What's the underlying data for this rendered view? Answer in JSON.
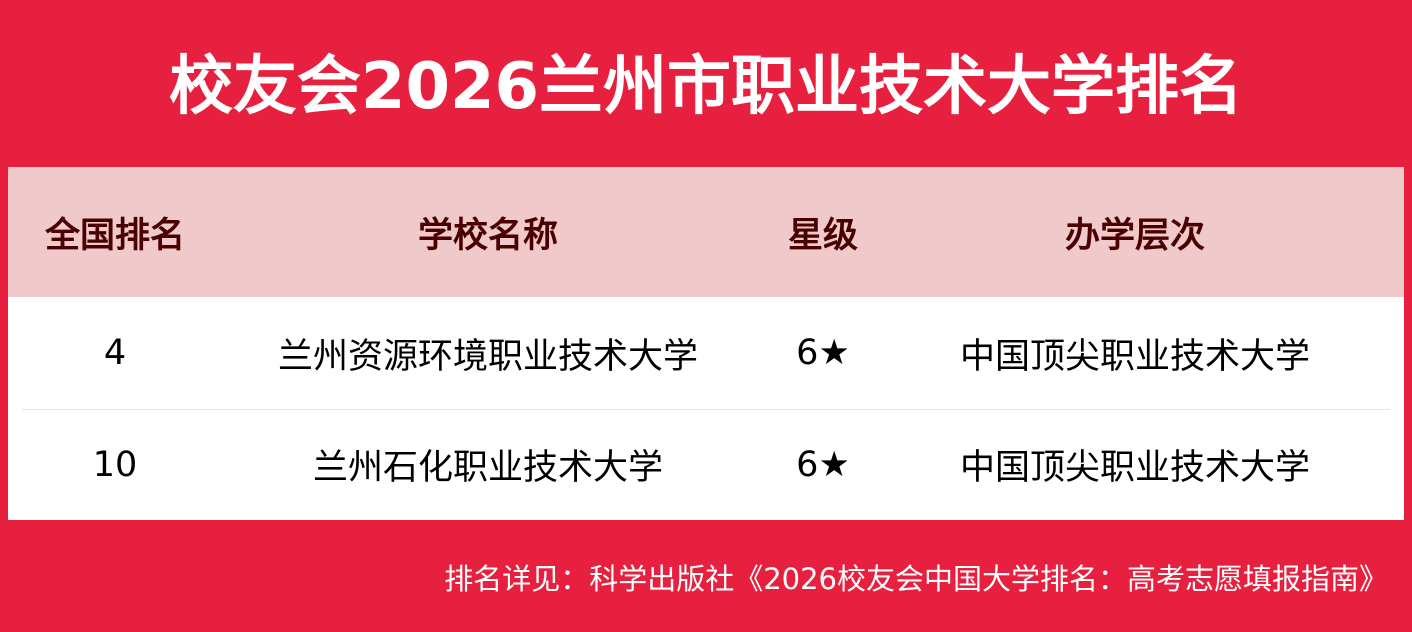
{
  "title": "校友会2026兰州市职业技术大学排名",
  "table": {
    "headers": [
      "全国排名",
      "学校名称",
      "星级",
      "办学层次"
    ],
    "rows": [
      [
        "4",
        "兰州资源环境职业技术大学",
        "6★",
        "中国顶尖职业技术大学"
      ],
      [
        "10",
        "兰州石化职业技术大学",
        "6★",
        "中国顶尖职业技术大学"
      ]
    ]
  },
  "footer": "排名详见：科学出版社《2026校友会中国大学排名：高考志愿填报指南》",
  "colors": {
    "brand_red": "#e8203f",
    "header_bg": "#f0c9ca",
    "header_text": "#4a0000"
  }
}
